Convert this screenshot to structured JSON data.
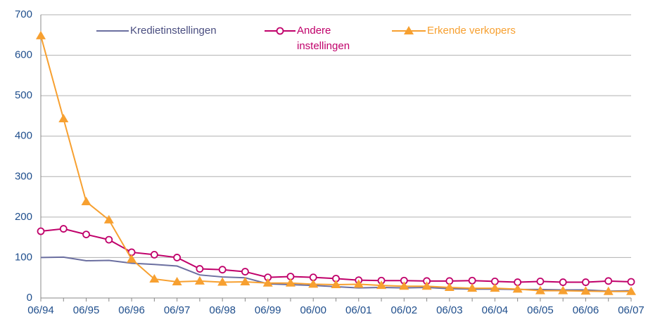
{
  "chart_data": {
    "type": "line",
    "categories": [
      "06/94",
      null,
      "06/95",
      null,
      "06/96",
      null,
      "06/97",
      null,
      "06/98",
      null,
      "06/99",
      null,
      "06/00",
      null,
      "06/01",
      null,
      "06/02",
      null,
      "06/03",
      null,
      "06/04",
      null,
      "06/05",
      null,
      "06/06",
      null,
      "06/07"
    ],
    "series": [
      {
        "name": "Kredietinstellingen",
        "color": "#6b6fa0",
        "marker": "none",
        "values": [
          100,
          101,
          92,
          93,
          86,
          83,
          79,
          57,
          52,
          50,
          35,
          33,
          31,
          28,
          25,
          26,
          25,
          26,
          23,
          22,
          22,
          21,
          21,
          20,
          20,
          17,
          18
        ]
      },
      {
        "name": "Andere instellingen",
        "color": "#c0006a",
        "marker": "circle",
        "values": [
          165,
          171,
          157,
          144,
          113,
          107,
          100,
          72,
          70,
          65,
          51,
          53,
          51,
          48,
          44,
          43,
          43,
          42,
          42,
          43,
          41,
          39,
          41,
          39,
          39,
          42,
          40
        ]
      },
      {
        "name": "Erkende verkopers",
        "color": "#f7a030",
        "marker": "triangle",
        "values": [
          648,
          443,
          238,
          193,
          96,
          47,
          40,
          42,
          39,
          40,
          37,
          37,
          34,
          33,
          34,
          31,
          29,
          29,
          26,
          24,
          24,
          22,
          18,
          18,
          17,
          16,
          16
        ]
      }
    ],
    "ylim": [
      0,
      700
    ],
    "yticks": [
      0,
      100,
      200,
      300,
      400,
      500,
      600,
      700
    ],
    "grid": true
  }
}
